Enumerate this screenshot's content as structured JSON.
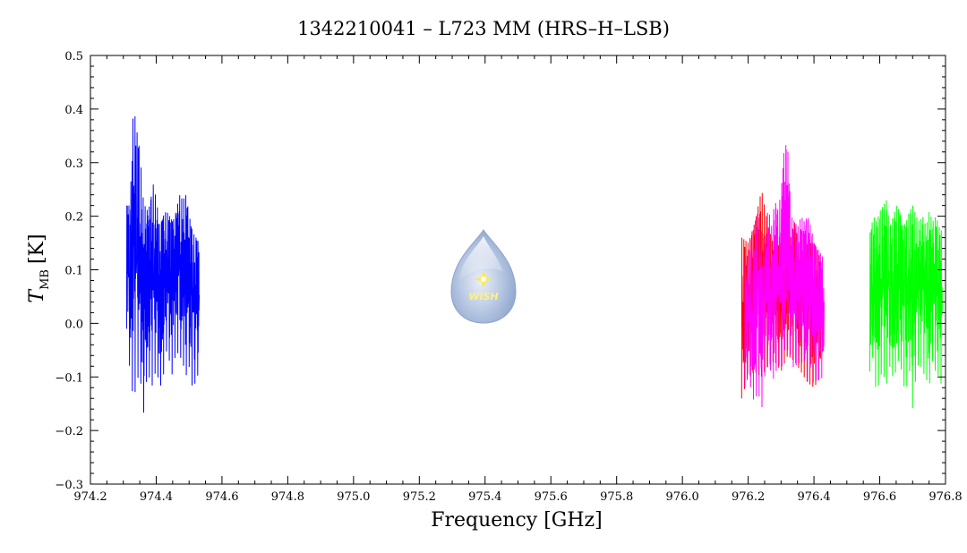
{
  "chart_data": {
    "type": "line",
    "title": "1342210041 – L723 MM (HRS–H–LSB)",
    "xlabel": "Frequency [GHz]",
    "ylabel_main": "T",
    "ylabel_sub": "MB",
    "ylabel_unit": "[K]",
    "xlim": [
      974.2,
      976.8
    ],
    "ylim": [
      -0.3,
      0.5
    ],
    "xticks": [
      974.2,
      974.4,
      974.6,
      974.8,
      975.0,
      975.2,
      975.4,
      975.6,
      975.8,
      976.0,
      976.2,
      976.4,
      976.6,
      976.8
    ],
    "xtick_labels": [
      "974.2",
      "974.4",
      "974.6",
      "974.8",
      "975.0",
      "975.2",
      "975.4",
      "975.6",
      "975.8",
      "976.0",
      "976.2",
      "976.4",
      "976.6",
      "976.8"
    ],
    "yticks": [
      -0.3,
      -0.2,
      -0.1,
      0.0,
      0.1,
      0.2,
      0.3,
      0.4,
      0.5
    ],
    "ytick_labels": [
      "−0.3",
      "−0.2",
      "−0.1",
      "0.0",
      "0.1",
      "0.2",
      "0.3",
      "0.4",
      "0.5"
    ],
    "grid": false,
    "series": [
      {
        "color": "#0000ff",
        "x": [
          974.31,
          974.32,
          974.33,
          974.34,
          974.35,
          974.36,
          974.37,
          974.38,
          974.39,
          974.4,
          974.41,
          974.42,
          974.43,
          974.44,
          974.45,
          974.46,
          974.47,
          974.48,
          974.49,
          974.5,
          974.51,
          974.52,
          974.53
        ],
        "y_min": [
          -0.01,
          -0.09,
          -0.14,
          -0.12,
          -0.08,
          -0.18,
          -0.11,
          -0.1,
          -0.12,
          -0.08,
          -0.12,
          -0.11,
          -0.05,
          -0.07,
          -0.1,
          -0.05,
          -0.06,
          -0.07,
          -0.1,
          -0.08,
          -0.12,
          -0.11,
          -0.09
        ],
        "y_max": [
          0.22,
          0.22,
          0.41,
          0.36,
          0.32,
          0.23,
          0.21,
          0.22,
          0.26,
          0.23,
          0.18,
          0.2,
          0.21,
          0.2,
          0.19,
          0.21,
          0.24,
          0.23,
          0.24,
          0.2,
          0.17,
          0.16,
          0.15
        ]
      },
      {
        "color": "#ff0000",
        "x": [
          976.18,
          976.2,
          976.22,
          976.24,
          976.26,
          976.28,
          976.3,
          976.32,
          976.34,
          976.36,
          976.38,
          976.4,
          976.42
        ],
        "y_min": [
          -0.14,
          -0.1,
          -0.09,
          -0.1,
          -0.08,
          -0.07,
          -0.09,
          -0.06,
          -0.07,
          -0.09,
          -0.11,
          -0.12,
          -0.1
        ],
        "y_max": [
          0.16,
          0.15,
          0.19,
          0.25,
          0.18,
          0.14,
          0.15,
          0.14,
          0.19,
          0.13,
          0.15,
          0.15,
          0.12
        ]
      },
      {
        "color": "#ff00ff",
        "x": [
          976.19,
          976.2,
          976.21,
          976.22,
          976.23,
          976.24,
          976.25,
          976.26,
          976.27,
          976.28,
          976.29,
          976.3,
          976.31,
          976.32,
          976.33,
          976.34,
          976.35,
          976.36,
          976.37,
          976.38,
          976.39,
          976.4,
          976.41,
          976.42,
          976.43
        ],
        "y_min": [
          -0.12,
          -0.09,
          -0.13,
          -0.15,
          -0.12,
          -0.17,
          -0.1,
          -0.08,
          -0.09,
          -0.11,
          -0.07,
          -0.09,
          -0.05,
          -0.05,
          -0.06,
          -0.09,
          -0.07,
          -0.08,
          -0.06,
          -0.11,
          -0.08,
          -0.12,
          -0.1,
          -0.11,
          -0.09
        ],
        "y_max": [
          0.12,
          0.13,
          0.16,
          0.19,
          0.21,
          0.17,
          0.15,
          0.22,
          0.18,
          0.23,
          0.21,
          0.25,
          0.34,
          0.32,
          0.2,
          0.19,
          0.18,
          0.2,
          0.19,
          0.2,
          0.18,
          0.15,
          0.14,
          0.13,
          0.12
        ]
      },
      {
        "color": "#00ff00",
        "x": [
          976.57,
          976.58,
          976.59,
          976.6,
          976.61,
          976.62,
          976.63,
          976.64,
          976.65,
          976.66,
          976.67,
          976.68,
          976.69,
          976.7,
          976.71,
          976.72,
          976.73,
          976.74,
          976.75,
          976.76,
          976.77,
          976.78,
          976.79
        ],
        "y_min": [
          -0.09,
          -0.06,
          -0.14,
          -0.1,
          -0.09,
          -0.12,
          -0.08,
          -0.1,
          -0.09,
          -0.06,
          -0.11,
          -0.13,
          -0.08,
          -0.16,
          -0.1,
          -0.07,
          -0.09,
          -0.1,
          -0.12,
          -0.07,
          -0.09,
          -0.1,
          -0.12
        ],
        "y_max": [
          0.17,
          0.2,
          0.19,
          0.21,
          0.22,
          0.23,
          0.18,
          0.2,
          0.22,
          0.21,
          0.18,
          0.19,
          0.21,
          0.22,
          0.2,
          0.19,
          0.2,
          0.18,
          0.21,
          0.19,
          0.2,
          0.18,
          0.17
        ]
      }
    ]
  },
  "logo": {
    "text": "WISH",
    "colors": {
      "drop": "#9fb4d8",
      "star": "#ffe94a",
      "text": "#fff27a"
    }
  }
}
